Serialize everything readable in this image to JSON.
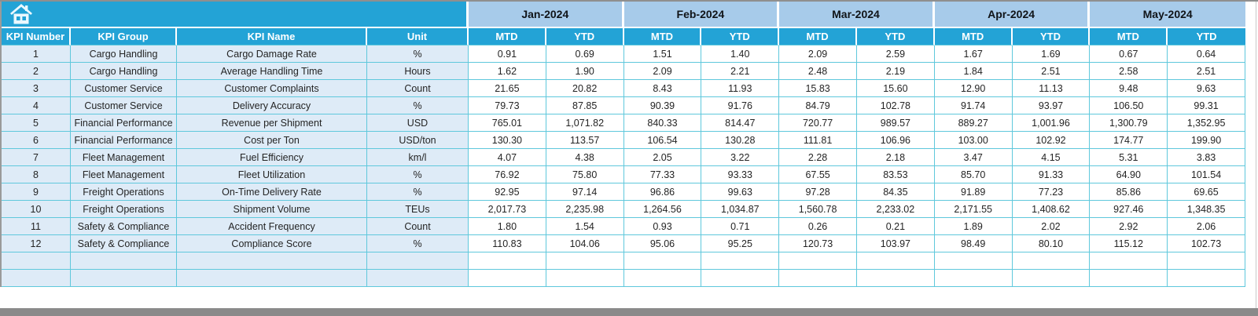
{
  "header": {
    "home_icon": "home-icon",
    "months": [
      "Jan-2024",
      "Feb-2024",
      "Mar-2024",
      "Apr-2024",
      "May-2024"
    ],
    "period_cols": [
      "MTD",
      "YTD"
    ],
    "left_cols": [
      "KPI Number",
      "KPI Group",
      "KPI Name",
      "Unit"
    ]
  },
  "rows": [
    {
      "number": "1",
      "group": "Cargo Handling",
      "name": "Cargo Damage Rate",
      "unit": "%",
      "values": [
        "0.91",
        "0.69",
        "1.51",
        "1.40",
        "2.09",
        "2.59",
        "1.67",
        "1.69",
        "0.67",
        "0.64"
      ]
    },
    {
      "number": "2",
      "group": "Cargo Handling",
      "name": "Average Handling Time",
      "unit": "Hours",
      "values": [
        "1.62",
        "1.90",
        "2.09",
        "2.21",
        "2.48",
        "2.19",
        "1.84",
        "2.51",
        "2.58",
        "2.51"
      ]
    },
    {
      "number": "3",
      "group": "Customer Service",
      "name": "Customer Complaints",
      "unit": "Count",
      "values": [
        "21.65",
        "20.82",
        "8.43",
        "11.93",
        "15.83",
        "15.60",
        "12.90",
        "11.13",
        "9.48",
        "9.63"
      ]
    },
    {
      "number": "4",
      "group": "Customer Service",
      "name": "Delivery Accuracy",
      "unit": "%",
      "values": [
        "79.73",
        "87.85",
        "90.39",
        "91.76",
        "84.79",
        "102.78",
        "91.74",
        "93.97",
        "106.50",
        "99.31"
      ]
    },
    {
      "number": "5",
      "group": "Financial Performance",
      "name": "Revenue per Shipment",
      "unit": "USD",
      "values": [
        "765.01",
        "1,071.82",
        "840.33",
        "814.47",
        "720.77",
        "989.57",
        "889.27",
        "1,001.96",
        "1,300.79",
        "1,352.95"
      ]
    },
    {
      "number": "6",
      "group": "Financial Performance",
      "name": "Cost per Ton",
      "unit": "USD/ton",
      "values": [
        "130.30",
        "113.57",
        "106.54",
        "130.28",
        "111.81",
        "106.96",
        "103.00",
        "102.92",
        "174.77",
        "199.90"
      ]
    },
    {
      "number": "7",
      "group": "Fleet Management",
      "name": "Fuel Efficiency",
      "unit": "km/l",
      "values": [
        "4.07",
        "4.38",
        "2.05",
        "3.22",
        "2.28",
        "2.18",
        "3.47",
        "4.15",
        "5.31",
        "3.83"
      ]
    },
    {
      "number": "8",
      "group": "Fleet Management",
      "name": "Fleet Utilization",
      "unit": "%",
      "values": [
        "76.92",
        "75.80",
        "77.33",
        "93.33",
        "67.55",
        "83.53",
        "85.70",
        "91.33",
        "64.90",
        "101.54"
      ]
    },
    {
      "number": "9",
      "group": "Freight Operations",
      "name": "On-Time Delivery Rate",
      "unit": "%",
      "values": [
        "92.95",
        "97.14",
        "96.86",
        "99.63",
        "97.28",
        "84.35",
        "91.89",
        "77.23",
        "85.86",
        "69.65"
      ]
    },
    {
      "number": "10",
      "group": "Freight Operations",
      "name": "Shipment Volume",
      "unit": "TEUs",
      "values": [
        "2,017.73",
        "2,235.98",
        "1,264.56",
        "1,034.87",
        "1,560.78",
        "2,233.02",
        "2,171.55",
        "1,408.62",
        "927.46",
        "1,348.35"
      ]
    },
    {
      "number": "11",
      "group": "Safety & Compliance",
      "name": "Accident Frequency",
      "unit": "Count",
      "values": [
        "1.80",
        "1.54",
        "0.93",
        "0.71",
        "0.26",
        "0.21",
        "1.89",
        "2.02",
        "2.92",
        "2.06"
      ]
    },
    {
      "number": "12",
      "group": "Safety & Compliance",
      "name": "Compliance Score",
      "unit": "%",
      "values": [
        "110.83",
        "104.06",
        "95.06",
        "95.25",
        "120.73",
        "103.97",
        "98.49",
        "80.10",
        "115.12",
        "102.73"
      ]
    }
  ],
  "empty_rows": 2,
  "layout_cols": {
    "left_widths": [
      88,
      135,
      242,
      129
    ],
    "data_col_width": 98.8
  },
  "colors": {
    "header_blue": "#23A3D6",
    "month_blue": "#A7CBEA",
    "row_blue": "#DEEBF7",
    "grid_cyan": "#5FC8DC",
    "text_dark": "#242424",
    "month_text": "#101418",
    "bottom_bar": "#8A8A8A",
    "icon_fill": "#EAF8FE"
  }
}
